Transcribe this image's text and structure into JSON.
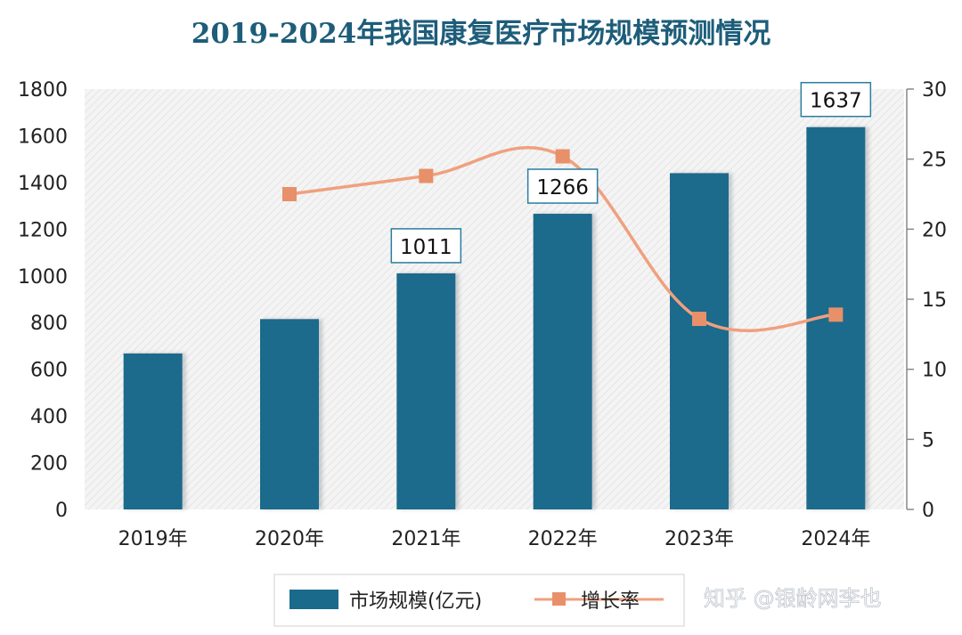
{
  "chart_data": {
    "type": "bar",
    "title": "2019-2024年我国康复医疗市场规模预测情况",
    "categories": [
      "2019年",
      "2020年",
      "2021年",
      "2022年",
      "2023年",
      "2024年"
    ],
    "series": [
      {
        "name": "市场规模(亿元)",
        "type": "bar",
        "axis": "left",
        "values": [
          668,
          815,
          1011,
          1266,
          1440,
          1637
        ],
        "data_labels": [
          "",
          "",
          "1011",
          "1266",
          "",
          "1637"
        ]
      },
      {
        "name": "增长率",
        "type": "line",
        "axis": "right",
        "values": [
          null,
          22.5,
          23.8,
          25.2,
          13.6,
          13.9
        ]
      }
    ],
    "ylim": [
      0,
      1800
    ],
    "y_ticks": [
      "0",
      "200",
      "400",
      "600",
      "800",
      "1000",
      "1200",
      "1400",
      "1600",
      "1800"
    ],
    "y2lim": [
      0,
      30
    ],
    "y2_ticks": [
      "0",
      "5",
      "10",
      "15",
      "20",
      "25",
      "30"
    ],
    "legend": "bottom",
    "grid": false,
    "colors": {
      "bar": "#1a6a8c",
      "line": "#f0a07e",
      "marker": "#e8906a",
      "title": "#1d5d7a"
    }
  },
  "watermark": "知乎 @银龄网李也"
}
